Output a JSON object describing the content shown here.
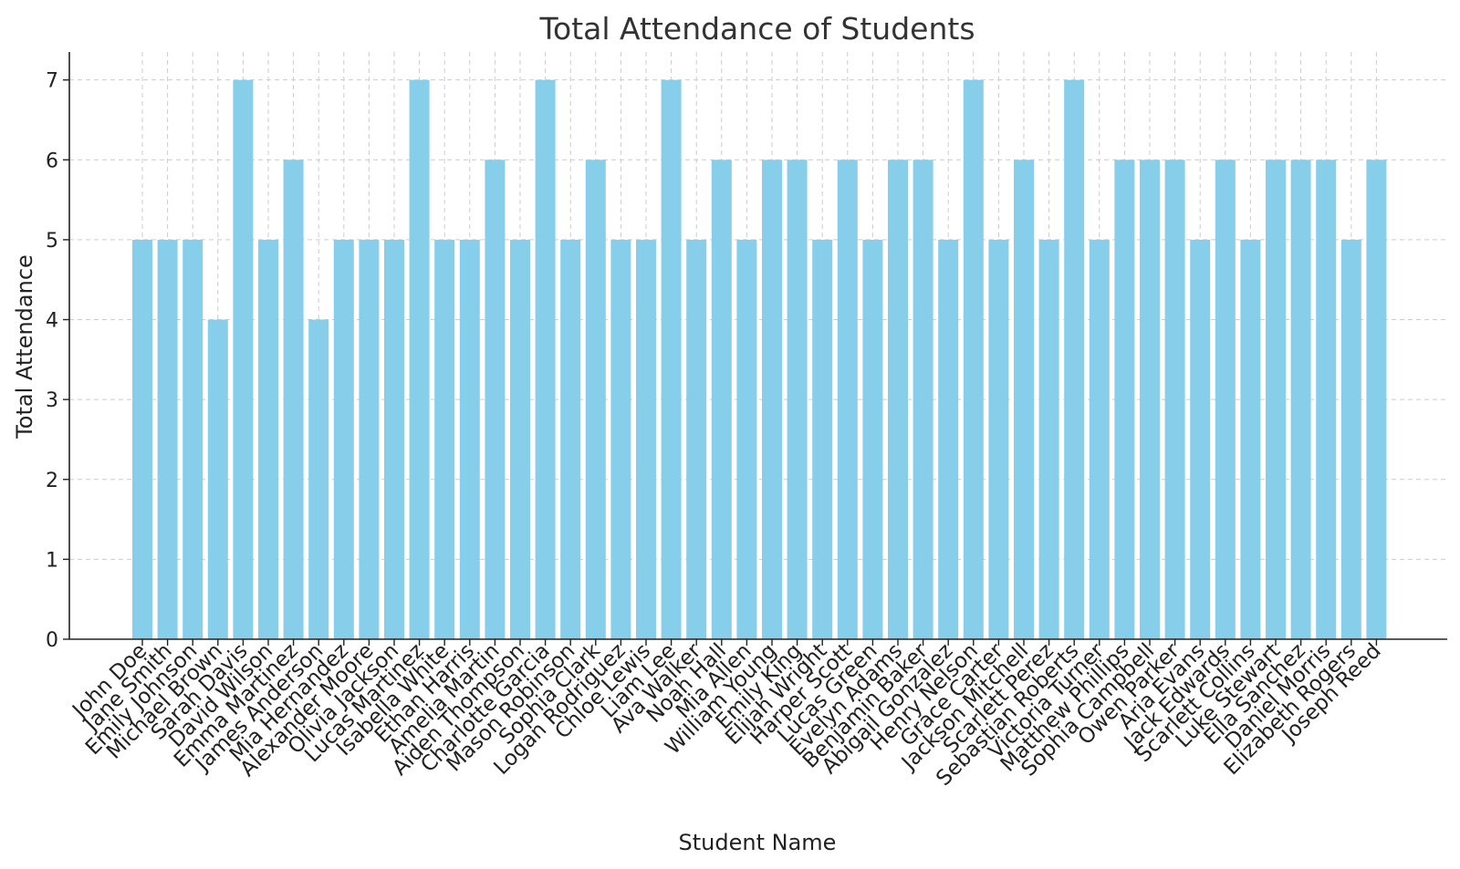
{
  "chart_data": {
    "type": "bar",
    "title": "Total Attendance of Students",
    "xlabel": "Student Name",
    "ylabel": "Total Attendance",
    "ylim": [
      0,
      7.35
    ],
    "yticks": [
      0,
      1,
      2,
      3,
      4,
      5,
      6,
      7
    ],
    "grid": true,
    "bar_color": "#87ceeb",
    "categories": [
      "John Doe",
      "Jane Smith",
      "Emily Johnson",
      "Michael Brown",
      "Sarah Davis",
      "David Wilson",
      "Emma Martinez",
      "James Anderson",
      "Mia Hernandez",
      "Alexander Moore",
      "Olivia Jackson",
      "Lucas Martinez",
      "Isabella White",
      "Ethan Harris",
      "Amelia Martin",
      "Aiden Thompson",
      "Charlotte Garcia",
      "Mason Robinson",
      "Sophia Clark",
      "Logan Rodriguez",
      "Chloe Lewis",
      "Liam Lee",
      "Ava Walker",
      "Noah Hall",
      "Mia Allen",
      "William Young",
      "Emily King",
      "Elijah Wright",
      "Harper Scott",
      "Lucas Green",
      "Evelyn Adams",
      "Benjamin Baker",
      "Abigail Gonzalez",
      "Henry Nelson",
      "Grace Carter",
      "Jackson Mitchell",
      "Scarlett Perez",
      "Sebastian Roberts",
      "Victoria Turner",
      "Matthew Phillips",
      "Sophia Campbell",
      "Owen Parker",
      "Aria Evans",
      "Jack Edwards",
      "Scarlett Collins",
      "Luke Stewart",
      "Ella Sanchez",
      "Daniel Morris",
      "Elizabeth Rogers",
      "Joseph Reed"
    ],
    "values": [
      5,
      5,
      5,
      4,
      7,
      5,
      6,
      4,
      5,
      5,
      5,
      7,
      5,
      5,
      6,
      5,
      7,
      5,
      6,
      5,
      5,
      7,
      5,
      6,
      5,
      6,
      6,
      5,
      6,
      5,
      6,
      6,
      5,
      7,
      5,
      6,
      5,
      7,
      5,
      6,
      6,
      6,
      5,
      6,
      5,
      6,
      6,
      6,
      5,
      6
    ]
  }
}
